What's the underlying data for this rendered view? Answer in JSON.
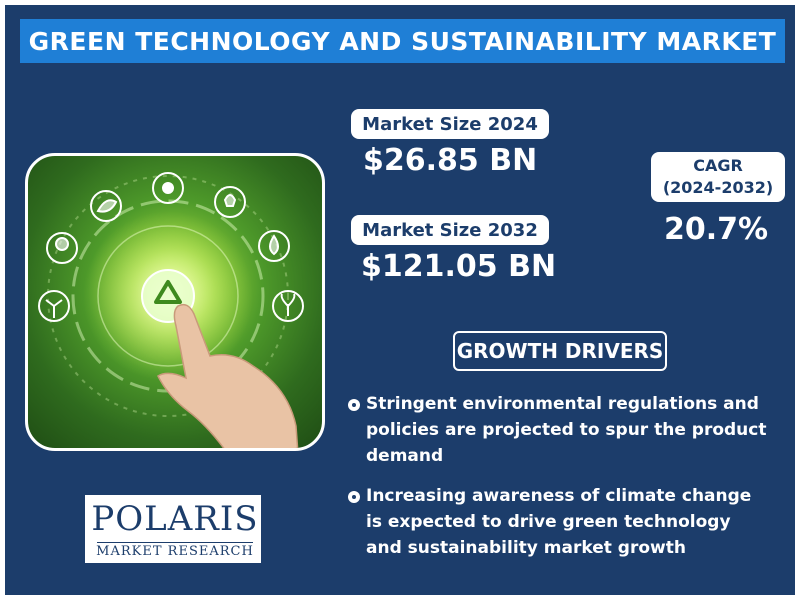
{
  "title": "GREEN TECHNOLOGY AND SUSTAINABILITY MARKET",
  "market_size_2024": {
    "label": "Market Size 2024",
    "value": "$26.85 BN"
  },
  "market_size_2032": {
    "label": "Market Size 2032",
    "value": "$121.05 BN"
  },
  "cagr": {
    "label_line1": "CAGR",
    "label_line2": "(2024-2032)",
    "value": "20.7%"
  },
  "growth_drivers": {
    "heading": "GROWTH DRIVERS",
    "items": [
      "Stringent environmental regulations and policies are projected to spur the product demand",
      "Increasing awareness of climate change is expected to drive green technology and sustainability market growth"
    ]
  },
  "logo": {
    "name": "POLARIS",
    "subtitle": "MARKET RESEARCH"
  },
  "colors": {
    "background": "#1c3d6b",
    "title_bar": "#1f7fd6",
    "pill": "#ffffff",
    "text": "#ffffff"
  },
  "icons": [
    "leaf-icon",
    "sun-icon",
    "lightbulb-icon",
    "tree-icon",
    "water-drop-icon",
    "wind-turbine-icon",
    "plant-icon",
    "recycle-icon"
  ]
}
